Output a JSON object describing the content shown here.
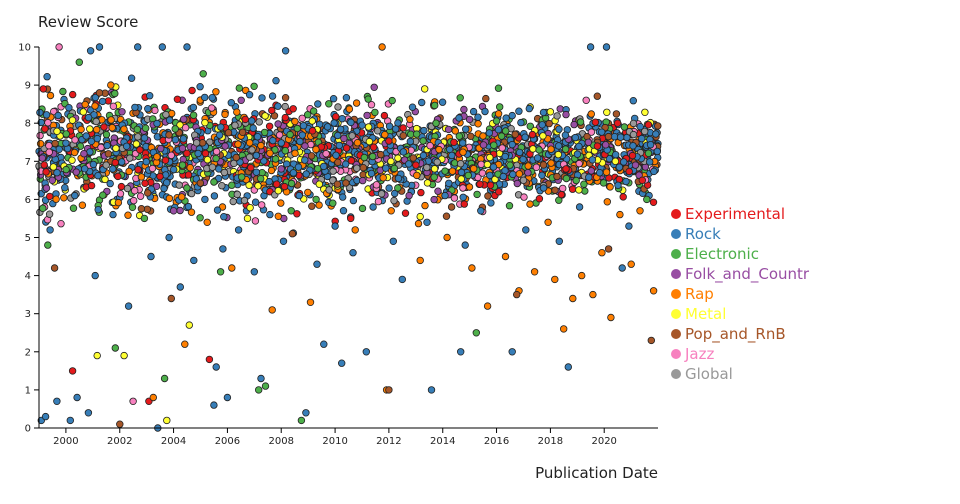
{
  "chart_data": {
    "type": "scatter",
    "title": "",
    "ylabel": "Review Score",
    "xlabel": "Publication Date",
    "xlim": [
      "1999-01-01",
      "2021-12-31"
    ],
    "ylim": [
      0,
      10
    ],
    "x_ticks": [
      "2000",
      "2002",
      "2004",
      "2006",
      "2008",
      "2010",
      "2012",
      "2014",
      "2016",
      "2018",
      "2020"
    ],
    "y_ticks": [
      "0",
      "1",
      "2",
      "3",
      "4",
      "5",
      "6",
      "7",
      "8",
      "9",
      "10"
    ],
    "grid": false,
    "legend_position": "right",
    "point_outline_color": "#222222",
    "series": [
      {
        "name": "Experimental",
        "color": "#e41a1c",
        "points": [
          [
            "1999-03-01",
            8.9
          ],
          [
            "2000-04-01",
            1.5
          ],
          [
            "2001-06-01",
            7.9
          ],
          [
            "2002-10-01",
            7.3
          ],
          [
            "2003-02-01",
            0.7
          ],
          [
            "2003-07-01",
            6.6
          ],
          [
            "2005-05-01",
            1.8
          ],
          [
            "2006-09-01",
            8.1
          ],
          [
            "2007-11-01",
            6.4
          ],
          [
            "2009-03-01",
            7.8
          ],
          [
            "2010-08-01",
            5.5
          ],
          [
            "2011-11-01",
            8.2
          ],
          [
            "2013-01-01",
            6.9
          ],
          [
            "2014-06-01",
            7.5
          ],
          [
            "2016-02-01",
            6.2
          ],
          [
            "2017-05-01",
            7.7
          ],
          [
            "2018-08-01",
            6.8
          ],
          [
            "2019-10-01",
            7.4
          ],
          [
            "2020-07-01",
            8.0
          ],
          [
            "2021-06-01",
            6.5
          ]
        ]
      },
      {
        "name": "Rock",
        "color": "#377eb8",
        "points": [
          [
            "1999-02-01",
            0.2
          ],
          [
            "1999-04-01",
            0.3
          ],
          [
            "1999-09-01",
            0.7
          ],
          [
            "2000-03-01",
            0.2
          ],
          [
            "2000-06-01",
            0.8
          ],
          [
            "2000-11-01",
            0.4
          ],
          [
            "2000-12-01",
            9.9
          ],
          [
            "2001-04-01",
            10.0
          ],
          [
            "2002-09-01",
            10.0
          ],
          [
            "2003-06-01",
            0.0
          ],
          [
            "2003-08-01",
            10.0
          ],
          [
            "2004-07-01",
            10.0
          ],
          [
            "2005-07-01",
            0.6
          ],
          [
            "2005-08-01",
            1.6
          ],
          [
            "2006-01-01",
            0.8
          ],
          [
            "2007-04-01",
            1.3
          ],
          [
            "2008-03-01",
            9.9
          ],
          [
            "2008-12-01",
            0.4
          ],
          [
            "2009-08-01",
            2.2
          ],
          [
            "2010-04-01",
            1.7
          ],
          [
            "2011-03-01",
            2.0
          ],
          [
            "2012-07-01",
            3.9
          ],
          [
            "2013-08-01",
            1.0
          ],
          [
            "2014-09-01",
            2.0
          ],
          [
            "2016-08-01",
            2.0
          ],
          [
            "2018-09-01",
            1.6
          ],
          [
            "2019-07-01",
            10.0
          ],
          [
            "2020-02-01",
            10.0
          ],
          [
            "2020-09-01",
            4.2
          ],
          [
            "1999-06-01",
            5.2
          ],
          [
            "2000-05-01",
            6.1
          ],
          [
            "2001-02-01",
            4.0
          ],
          [
            "2001-10-01",
            5.6
          ],
          [
            "2002-05-01",
            3.2
          ],
          [
            "2003-03-01",
            4.5
          ],
          [
            "2003-11-01",
            5.0
          ],
          [
            "2004-04-01",
            3.7
          ],
          [
            "2004-10-01",
            4.4
          ],
          [
            "2005-03-01",
            6.0
          ],
          [
            "2005-11-01",
            4.7
          ],
          [
            "2006-06-01",
            5.2
          ],
          [
            "2007-01-01",
            4.1
          ],
          [
            "2007-08-01",
            5.6
          ],
          [
            "2008-02-01",
            4.9
          ],
          [
            "2008-09-01",
            6.1
          ],
          [
            "2009-05-01",
            4.3
          ],
          [
            "2010-01-01",
            5.3
          ],
          [
            "2010-09-01",
            4.6
          ],
          [
            "2011-06-01",
            5.8
          ],
          [
            "2012-03-01",
            4.9
          ],
          [
            "2012-11-01",
            6.2
          ],
          [
            "2013-06-01",
            5.4
          ],
          [
            "2014-02-01",
            6.1
          ],
          [
            "2014-11-01",
            4.8
          ],
          [
            "2015-06-01",
            5.7
          ],
          [
            "2016-04-01",
            6.6
          ],
          [
            "2017-02-01",
            5.2
          ],
          [
            "2017-10-01",
            6.3
          ],
          [
            "2018-05-01",
            4.9
          ],
          [
            "2019-02-01",
            5.8
          ],
          [
            "2019-11-01",
            6.7
          ],
          [
            "2020-12-01",
            5.3
          ],
          [
            "2021-09-01",
            6.1
          ]
        ]
      },
      {
        "name": "Electronic",
        "color": "#4daf4a",
        "points": [
          [
            "1999-05-01",
            4.8
          ],
          [
            "2000-07-01",
            9.6
          ],
          [
            "2001-11-01",
            2.1
          ],
          [
            "2002-12-01",
            5.5
          ],
          [
            "2003-09-01",
            1.3
          ],
          [
            "2004-05-01",
            6.9
          ],
          [
            "2005-10-01",
            4.1
          ],
          [
            "2007-03-01",
            1.0
          ],
          [
            "2007-06-01",
            1.1
          ],
          [
            "2008-05-01",
            7.7
          ],
          [
            "2008-10-01",
            0.2
          ],
          [
            "2009-12-01",
            5.9
          ],
          [
            "2011-02-01",
            7.1
          ],
          [
            "2012-05-01",
            6.3
          ],
          [
            "2013-10-01",
            8.0
          ],
          [
            "2015-04-01",
            2.5
          ],
          [
            "2016-07-01",
            6.9
          ],
          [
            "2017-08-01",
            7.3
          ],
          [
            "2019-04-01",
            6.4
          ],
          [
            "2020-10-01",
            7.9
          ],
          [
            "2021-08-01",
            6.0
          ]
        ]
      },
      {
        "name": "Folk_and_Countr",
        "color": "#984ea3",
        "points": [
          [
            "1999-07-01",
            6.5
          ],
          [
            "2000-09-01",
            7.2
          ],
          [
            "2002-02-01",
            8.3
          ],
          [
            "2004-01-01",
            5.7
          ],
          [
            "2005-12-01",
            7.4
          ],
          [
            "2008-01-01",
            6.8
          ],
          [
            "2010-05-01",
            7.6
          ],
          [
            "2012-10-01",
            6.1
          ],
          [
            "2015-01-01",
            8.1
          ],
          [
            "2017-03-01",
            6.7
          ],
          [
            "2019-06-01",
            7.5
          ],
          [
            "2021-03-01",
            6.9
          ]
        ]
      },
      {
        "name": "Rap",
        "color": "#ff7f00",
        "points": [
          [
            "2001-09-01",
            9.0
          ],
          [
            "2003-04-01",
            0.8
          ],
          [
            "2004-06-01",
            2.2
          ],
          [
            "2005-04-01",
            5.4
          ],
          [
            "2006-03-01",
            4.2
          ],
          [
            "2007-09-01",
            3.1
          ],
          [
            "2009-02-01",
            3.3
          ],
          [
            "2010-10-01",
            5.2
          ],
          [
            "2011-10-01",
            10.0
          ],
          [
            "2011-12-01",
            1.0
          ],
          [
            "2012-02-01",
            5.7
          ],
          [
            "2013-03-01",
            4.4
          ],
          [
            "2014-03-01",
            5.0
          ],
          [
            "2015-02-01",
            4.2
          ],
          [
            "2015-09-01",
            3.2
          ],
          [
            "2016-05-01",
            4.5
          ],
          [
            "2016-11-01",
            3.6
          ],
          [
            "2017-06-01",
            4.1
          ],
          [
            "2017-12-01",
            5.4
          ],
          [
            "2018-03-01",
            3.9
          ],
          [
            "2018-07-01",
            2.6
          ],
          [
            "2018-11-01",
            3.4
          ],
          [
            "2019-03-01",
            4.0
          ],
          [
            "2019-08-01",
            3.5
          ],
          [
            "2019-12-01",
            4.6
          ],
          [
            "2020-04-01",
            2.9
          ],
          [
            "2020-08-01",
            5.6
          ],
          [
            "2021-01-01",
            4.3
          ],
          [
            "2021-05-01",
            5.7
          ],
          [
            "2021-11-01",
            3.6
          ]
        ]
      },
      {
        "name": "Metal",
        "color": "#ffff33",
        "points": [
          [
            "2001-03-01",
            1.9
          ],
          [
            "2002-03-01",
            1.9
          ],
          [
            "2003-10-01",
            0.2
          ],
          [
            "2004-08-01",
            2.7
          ],
          [
            "2006-10-01",
            5.5
          ],
          [
            "2009-06-01",
            6.4
          ],
          [
            "2011-04-01",
            7.9
          ],
          [
            "2013-05-01",
            8.9
          ],
          [
            "2015-10-01",
            7.1
          ],
          [
            "2018-01-01",
            8.3
          ],
          [
            "2020-06-01",
            7.0
          ]
        ]
      },
      {
        "name": "Pop_and_RnB",
        "color": "#a65628",
        "points": [
          [
            "1999-08-01",
            4.2
          ],
          [
            "2002-01-01",
            0.1
          ],
          [
            "2003-12-01",
            3.4
          ],
          [
            "2006-05-01",
            7.1
          ],
          [
            "2008-06-01",
            5.1
          ],
          [
            "2010-02-01",
            6.4
          ],
          [
            "2012-01-01",
            1.0
          ],
          [
            "2014-05-01",
            5.8
          ],
          [
            "2016-10-01",
            3.5
          ],
          [
            "2018-04-01",
            6.6
          ],
          [
            "2020-03-01",
            4.7
          ],
          [
            "2021-10-01",
            2.3
          ]
        ]
      },
      {
        "name": "Jazz",
        "color": "#f781bf",
        "points": [
          [
            "1999-10-01",
            10.0
          ],
          [
            "2002-07-01",
            0.7
          ],
          [
            "2005-06-01",
            8.4
          ],
          [
            "2009-09-01",
            7.2
          ],
          [
            "2014-10-01",
            6.3
          ],
          [
            "2019-05-01",
            8.6
          ]
        ]
      },
      {
        "name": "Global",
        "color": "#999999",
        "points": [
          [
            "2001-07-01",
            6.9
          ],
          [
            "2006-12-01",
            7.3
          ],
          [
            "2011-08-01",
            7.8
          ],
          [
            "2017-01-01",
            6.5
          ],
          [
            "2021-02-01",
            7.7
          ]
        ]
      }
    ],
    "legend": [
      {
        "label": "Experimental",
        "color": "#e41a1c"
      },
      {
        "label": "Rock",
        "color": "#377eb8"
      },
      {
        "label": "Electronic",
        "color": "#4daf4a"
      },
      {
        "label": "Folk_and_Countr",
        "color": "#984ea3"
      },
      {
        "label": "Rap",
        "color": "#ff7f00"
      },
      {
        "label": "Metal",
        "color": "#ffff33"
      },
      {
        "label": "Pop_and_RnB",
        "color": "#a65628"
      },
      {
        "label": "Jazz",
        "color": "#f781bf"
      },
      {
        "label": "Global",
        "color": "#999999"
      }
    ]
  }
}
